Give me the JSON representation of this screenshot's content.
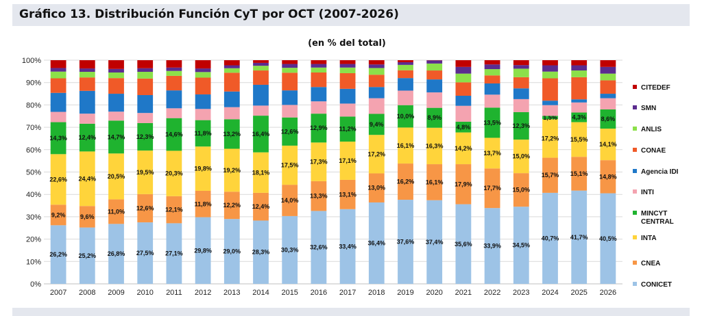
{
  "header": {
    "title": "Gráfico 13. Distribución Función CyT por OCT (2007-2026)"
  },
  "chart_data": {
    "type": "bar",
    "stacked": true,
    "subtitle": "(en % del total)",
    "xlabel": "",
    "ylabel": "",
    "ylim": [
      0,
      100
    ],
    "y_ticks": [
      "0%",
      "10%",
      "20%",
      "30%",
      "40%",
      "50%",
      "60%",
      "70%",
      "80%",
      "90%",
      "100%"
    ],
    "grid": "horizontal",
    "legend_position": "right",
    "categories": [
      "2007",
      "2008",
      "2009",
      "2010",
      "2011",
      "2012",
      "2013",
      "2014",
      "2015",
      "2016",
      "2017",
      "2018",
      "2019",
      "2020",
      "2021",
      "2022",
      "2023",
      "2024",
      "2025",
      "2026"
    ],
    "series": [
      {
        "name": "CONICET",
        "color": "#9dc3e6",
        "values": [
          26.2,
          25.2,
          26.8,
          27.5,
          27.1,
          29.8,
          29.0,
          28.3,
          30.3,
          32.6,
          33.4,
          36.4,
          37.6,
          37.4,
          35.6,
          33.9,
          34.5,
          40.7,
          41.7,
          40.5
        ]
      },
      {
        "name": "CNEA",
        "color": "#f79646",
        "values": [
          9.2,
          9.6,
          11.0,
          12.6,
          12.1,
          11.8,
          12.2,
          12.4,
          14.0,
          13.3,
          13.1,
          13.0,
          16.2,
          16.1,
          17.9,
          17.7,
          15.0,
          15.7,
          15.1,
          14.8
        ]
      },
      {
        "name": "INTA",
        "color": "#ffd43b",
        "values": [
          22.6,
          24.4,
          20.5,
          19.5,
          20.3,
          19.8,
          19.2,
          18.1,
          17.5,
          17.3,
          17.1,
          17.2,
          16.1,
          16.3,
          14.2,
          13.7,
          15.0,
          17.2,
          15.5,
          14.1
        ]
      },
      {
        "name": "MINCYT CENTRAL",
        "color": "#1fb32f",
        "values": [
          14.3,
          12.4,
          14.7,
          12.3,
          14.6,
          11.8,
          13.2,
          16.4,
          12.6,
          12.9,
          11.2,
          9.4,
          10.0,
          8.9,
          4.8,
          13.5,
          12.3,
          1.5,
          4.3,
          8.6
        ]
      },
      {
        "name": "INTI",
        "color": "#f4a3b0",
        "values": [
          4.6,
          4.5,
          4.0,
          4.5,
          4.4,
          5.0,
          5.4,
          4.5,
          5.6,
          5.5,
          5.8,
          7.0,
          6.5,
          6.9,
          7.1,
          5.8,
          5.8,
          4.8,
          4.5,
          5.0
        ]
      },
      {
        "name": "Agencia IDI",
        "color": "#1f78c8",
        "values": [
          8.5,
          10.2,
          8.0,
          8.0,
          8.0,
          6.5,
          7.0,
          9.3,
          6.5,
          6.4,
          6.6,
          5.0,
          5.6,
          5.8,
          4.5,
          5.0,
          4.8,
          2.0,
          1.4,
          2.0
        ]
      },
      {
        "name": "CONAE",
        "color": "#f05a28",
        "values": [
          6.5,
          6.0,
          7.0,
          7.4,
          6.5,
          7.5,
          8.4,
          6.4,
          7.9,
          6.5,
          7.0,
          5.5,
          3.5,
          4.0,
          6.0,
          3.6,
          5.0,
          10.0,
          9.9,
          6.0
        ]
      },
      {
        "name": "ANLIS",
        "color": "#8ce04a",
        "values": [
          3.0,
          2.5,
          2.5,
          3.0,
          2.2,
          2.5,
          2.0,
          2.1,
          2.2,
          2.2,
          2.5,
          3.0,
          2.4,
          3.1,
          3.9,
          2.8,
          3.8,
          3.0,
          3.0,
          3.0
        ]
      },
      {
        "name": "SMN",
        "color": "#5b2c8f",
        "values": [
          1.6,
          1.5,
          1.6,
          1.6,
          1.5,
          1.6,
          1.3,
          1.3,
          1.7,
          1.6,
          1.6,
          1.6,
          1.2,
          1.4,
          3.0,
          2.1,
          1.6,
          2.8,
          2.3,
          3.0
        ]
      },
      {
        "name": "CITEDEF",
        "color": "#c00000",
        "values": [
          3.5,
          3.7,
          3.9,
          3.6,
          3.3,
          3.7,
          2.3,
          1.2,
          1.7,
          1.7,
          1.7,
          1.9,
          0.9,
          0.1,
          3.0,
          1.9,
          2.2,
          2.3,
          2.3,
          3.0
        ]
      }
    ],
    "labeled_series": [
      "CONICET",
      "CNEA",
      "INTA",
      "MINCYT CENTRAL"
    ],
    "legend_order": [
      "CITEDEF",
      "SMN",
      "ANLIS",
      "CONAE",
      "Agencia IDI",
      "INTI",
      "MINCYT CENTRAL",
      "INTA",
      "CNEA",
      "CONICET"
    ]
  }
}
